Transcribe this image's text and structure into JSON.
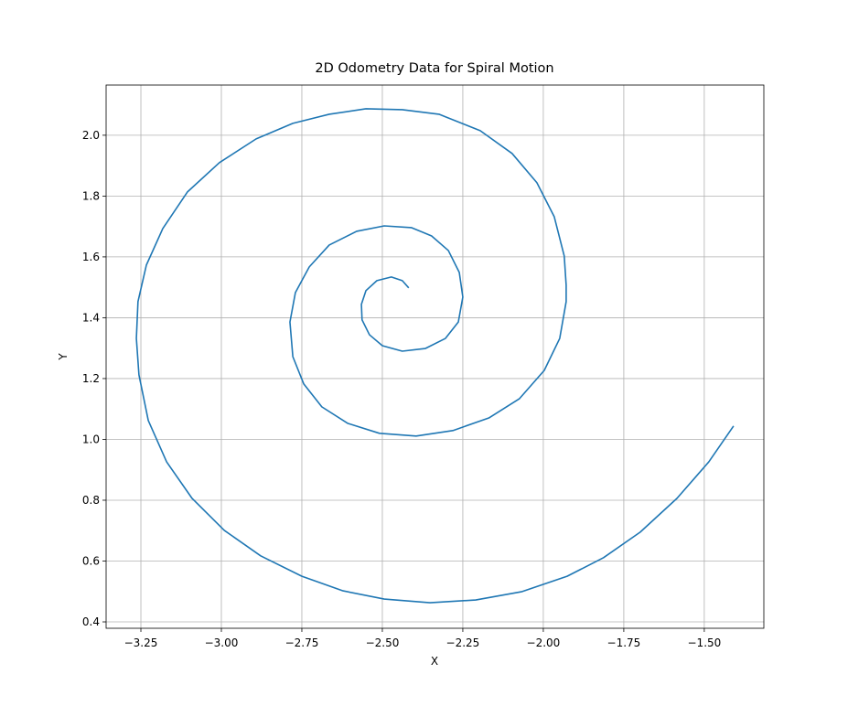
{
  "chart_data": {
    "type": "line",
    "title": "2D Odometry Data for Spiral Motion",
    "xlabel": "X",
    "ylabel": "Y",
    "color": "#1f77b4",
    "grid": true,
    "xlim": [
      -3.358,
      -1.315
    ],
    "ylim": [
      0.379,
      2.165
    ],
    "xticks": [
      {
        "value": -3.25,
        "label": "−3.25"
      },
      {
        "value": -3.0,
        "label": "−3.00"
      },
      {
        "value": -2.75,
        "label": "−2.75"
      },
      {
        "value": -2.5,
        "label": "−2.50"
      },
      {
        "value": -2.25,
        "label": "−2.25"
      },
      {
        "value": -2.0,
        "label": "−2.00"
      },
      {
        "value": -1.75,
        "label": "−1.75"
      },
      {
        "value": -1.5,
        "label": "−1.50"
      }
    ],
    "yticks": [
      {
        "value": 0.4,
        "label": "0.4"
      },
      0.6,
      0.8,
      {
        "value": 1.0,
        "label": "1.0"
      },
      1.2,
      1.4,
      1.6,
      1.8,
      {
        "value": 2.0,
        "label": "2.0"
      }
    ],
    "x": [
      -2.418,
      -2.438,
      -2.472,
      -2.517,
      -2.551,
      -2.565,
      -2.563,
      -2.54,
      -2.5,
      -2.438,
      -2.366,
      -2.304,
      -2.264,
      -2.25,
      -2.261,
      -2.295,
      -2.347,
      -2.409,
      -2.494,
      -2.58,
      -2.665,
      -2.727,
      -2.77,
      -2.787,
      -2.778,
      -2.744,
      -2.688,
      -2.608,
      -2.509,
      -2.395,
      -2.281,
      -2.168,
      -2.074,
      -1.997,
      -1.949,
      -1.929,
      -1.929,
      -1.935,
      -1.966,
      -2.02,
      -2.097,
      -2.196,
      -2.324,
      -2.438,
      -2.551,
      -2.665,
      -2.778,
      -2.892,
      -3.006,
      -3.105,
      -3.182,
      -3.233,
      -3.259,
      -3.264,
      -3.256,
      -3.227,
      -3.17,
      -3.091,
      -2.991,
      -2.878,
      -2.75,
      -2.622,
      -2.494,
      -2.352,
      -2.21,
      -2.068,
      -1.926,
      -1.813,
      -1.699,
      -1.585,
      -1.486,
      -1.409
    ],
    "values": [
      1.498,
      1.522,
      1.534,
      1.522,
      1.489,
      1.444,
      1.393,
      1.344,
      1.308,
      1.29,
      1.299,
      1.332,
      1.386,
      1.468,
      1.549,
      1.621,
      1.669,
      1.696,
      1.702,
      1.684,
      1.639,
      1.567,
      1.483,
      1.386,
      1.272,
      1.182,
      1.107,
      1.053,
      1.02,
      1.011,
      1.029,
      1.071,
      1.134,
      1.227,
      1.332,
      1.453,
      1.507,
      1.603,
      1.732,
      1.844,
      1.94,
      2.015,
      2.069,
      2.084,
      2.087,
      2.069,
      2.039,
      1.988,
      1.91,
      1.814,
      1.693,
      1.573,
      1.453,
      1.332,
      1.212,
      1.062,
      0.926,
      0.806,
      0.701,
      0.617,
      0.55,
      0.502,
      0.475,
      0.463,
      0.472,
      0.499,
      0.55,
      0.611,
      0.695,
      0.806,
      0.926,
      1.044
    ]
  }
}
